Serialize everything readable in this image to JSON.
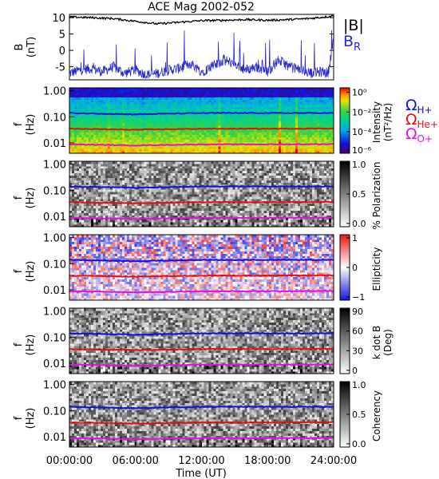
{
  "chart_data": {
    "type": "heatmap",
    "title": "ACE Mag 2002-052",
    "xlabel": "Time (UT)",
    "x_ticks": [
      "00:00:00",
      "06:00:00",
      "12:00:00",
      "18:00:00",
      "24:00:00"
    ],
    "x_range_hours": [
      0,
      24
    ],
    "top_panel": {
      "type": "line",
      "ylabel": "B",
      "yunit": "(nT)",
      "ylim": [
        -9,
        11
      ],
      "yticks": [
        "10",
        "5",
        "0",
        "-5"
      ],
      "legend": [
        {
          "label": "|B|",
          "color": "#000000"
        },
        {
          "label": "B",
          "sub": "R",
          "color": "#2828d0"
        }
      ],
      "B_total_nT": {
        "hours": [
          0,
          2,
          4,
          6,
          8,
          10,
          12,
          14,
          16,
          18,
          20,
          22,
          23.5,
          24
        ],
        "values": [
          10.2,
          10.0,
          9.7,
          8.9,
          8.1,
          8.6,
          9.1,
          9.2,
          9.4,
          9.2,
          9.4,
          9.8,
          10.3,
          10.6
        ]
      },
      "B_R_nT": {
        "hours": [
          0,
          1,
          2,
          3,
          4,
          5,
          6,
          7,
          8,
          9,
          10,
          11,
          12,
          13,
          14,
          15,
          16,
          17,
          18,
          19,
          20,
          21,
          22,
          23,
          23.5,
          24
        ],
        "values": [
          -7,
          -6,
          -5.5,
          -6.5,
          -5,
          -7,
          -6,
          -7.5,
          -7,
          -6,
          -5.5,
          -4,
          -6.5,
          -5,
          -3,
          -4,
          -6,
          -5,
          -6.5,
          -3,
          -5,
          -6,
          -7,
          -6.5,
          -7,
          4
        ]
      }
    },
    "spectrogram_panels": [
      {
        "name": "Intensity",
        "colorbar_label": "Intensity",
        "colorbar_unit": "(nT²/Hz)",
        "colorbar_ticks": [
          "10⁰",
          "10⁻²",
          "10⁻⁴",
          "10⁻⁶"
        ],
        "colormap": "rainbow"
      },
      {
        "name": "% Polarization",
        "colorbar_label": "% Polarization",
        "colorbar_unit": "",
        "colorbar_ticks": [
          "1.0",
          "0.5",
          "0.0"
        ],
        "colormap": "gray"
      },
      {
        "name": "Ellipticity",
        "colorbar_label": "Ellipticity",
        "colorbar_unit": "",
        "colorbar_ticks": [
          "1",
          "0",
          "−1"
        ],
        "colormap": "bwr"
      },
      {
        "name": "k dot B",
        "colorbar_label": "k dot B",
        "colorbar_unit": "(Deg)",
        "colorbar_ticks": [
          "90",
          "60",
          "30",
          "0"
        ],
        "colormap": "gray"
      },
      {
        "name": "Coherency",
        "colorbar_label": "Coherency",
        "colorbar_unit": "",
        "colorbar_ticks": [
          "1.0",
          "0.5",
          "0.0"
        ],
        "colormap": "gray"
      }
    ],
    "spectrogram_ylabel": "f",
    "spectrogram_yunit": "(Hz)",
    "spectrogram_yticks": [
      "1.00",
      "0.10",
      "0.01"
    ],
    "freq_range_hz": [
      0.004,
      1.3
    ],
    "gyrofrequency_lines": [
      {
        "label": "Ω",
        "sub": "H+",
        "color": "#1010e0",
        "freq_hz": {
          "hours": [
            0,
            6,
            12,
            18,
            24
          ],
          "values": [
            0.14,
            0.125,
            0.14,
            0.14,
            0.14
          ]
        }
      },
      {
        "label": "Ω",
        "sub": "He+",
        "color": "#e01010",
        "freq_hz": {
          "hours": [
            0,
            6,
            12,
            18,
            24
          ],
          "values": [
            0.035,
            0.032,
            0.035,
            0.035,
            0.036
          ]
        }
      },
      {
        "label": "Ω",
        "sub": "O+",
        "color": "#e010e0",
        "freq_hz": {
          "hours": [
            0,
            6,
            12,
            18,
            24
          ],
          "values": [
            0.0088,
            0.008,
            0.0088,
            0.0088,
            0.009
          ]
        }
      }
    ],
    "grid": false
  },
  "colors": {
    "B_total": "#000000",
    "B_R": "#2828d0",
    "H_plus": "#1010e0",
    "He_plus": "#e01010",
    "O_plus": "#e010e0"
  }
}
